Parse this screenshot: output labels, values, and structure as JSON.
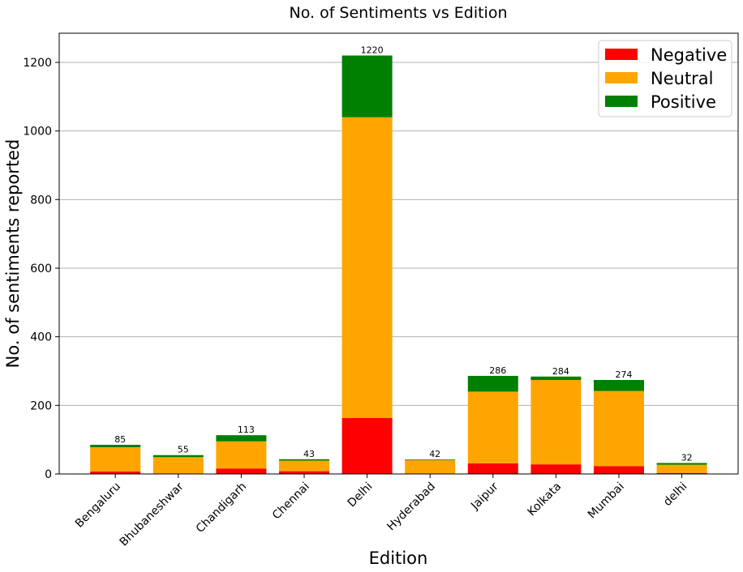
{
  "chart_data": {
    "type": "bar",
    "stacked": true,
    "title": "No. of Sentiments vs Edition",
    "xlabel": "Edition",
    "ylabel": "No. of sentiments reported",
    "ylim": [
      0,
      1285
    ],
    "yticks": [
      0,
      200,
      400,
      600,
      800,
      1000,
      1200
    ],
    "grid": "horizontal",
    "legend_position": "top-right",
    "categories": [
      "Bengaluru",
      "Bhubaneshwar",
      "Chandigarh",
      "Chennai",
      "Delhi",
      "Hyderabad",
      "Jaipur",
      "Kolkata",
      "Mumbai",
      "delhi"
    ],
    "series": [
      {
        "name": "Negative",
        "color": "#ff0000",
        "values": [
          7,
          1,
          16,
          8,
          163,
          1,
          31,
          28,
          23,
          3
        ]
      },
      {
        "name": "Neutral",
        "color": "#ffa500",
        "values": [
          71,
          48,
          79,
          31,
          877,
          39,
          209,
          246,
          219,
          24
        ]
      },
      {
        "name": "Positive",
        "color": "#008000",
        "values": [
          7,
          6,
          18,
          4,
          180,
          2,
          46,
          10,
          32,
          5
        ]
      }
    ],
    "totals": [
      85,
      55,
      113,
      43,
      1220,
      42,
      286,
      284,
      274,
      32
    ]
  }
}
